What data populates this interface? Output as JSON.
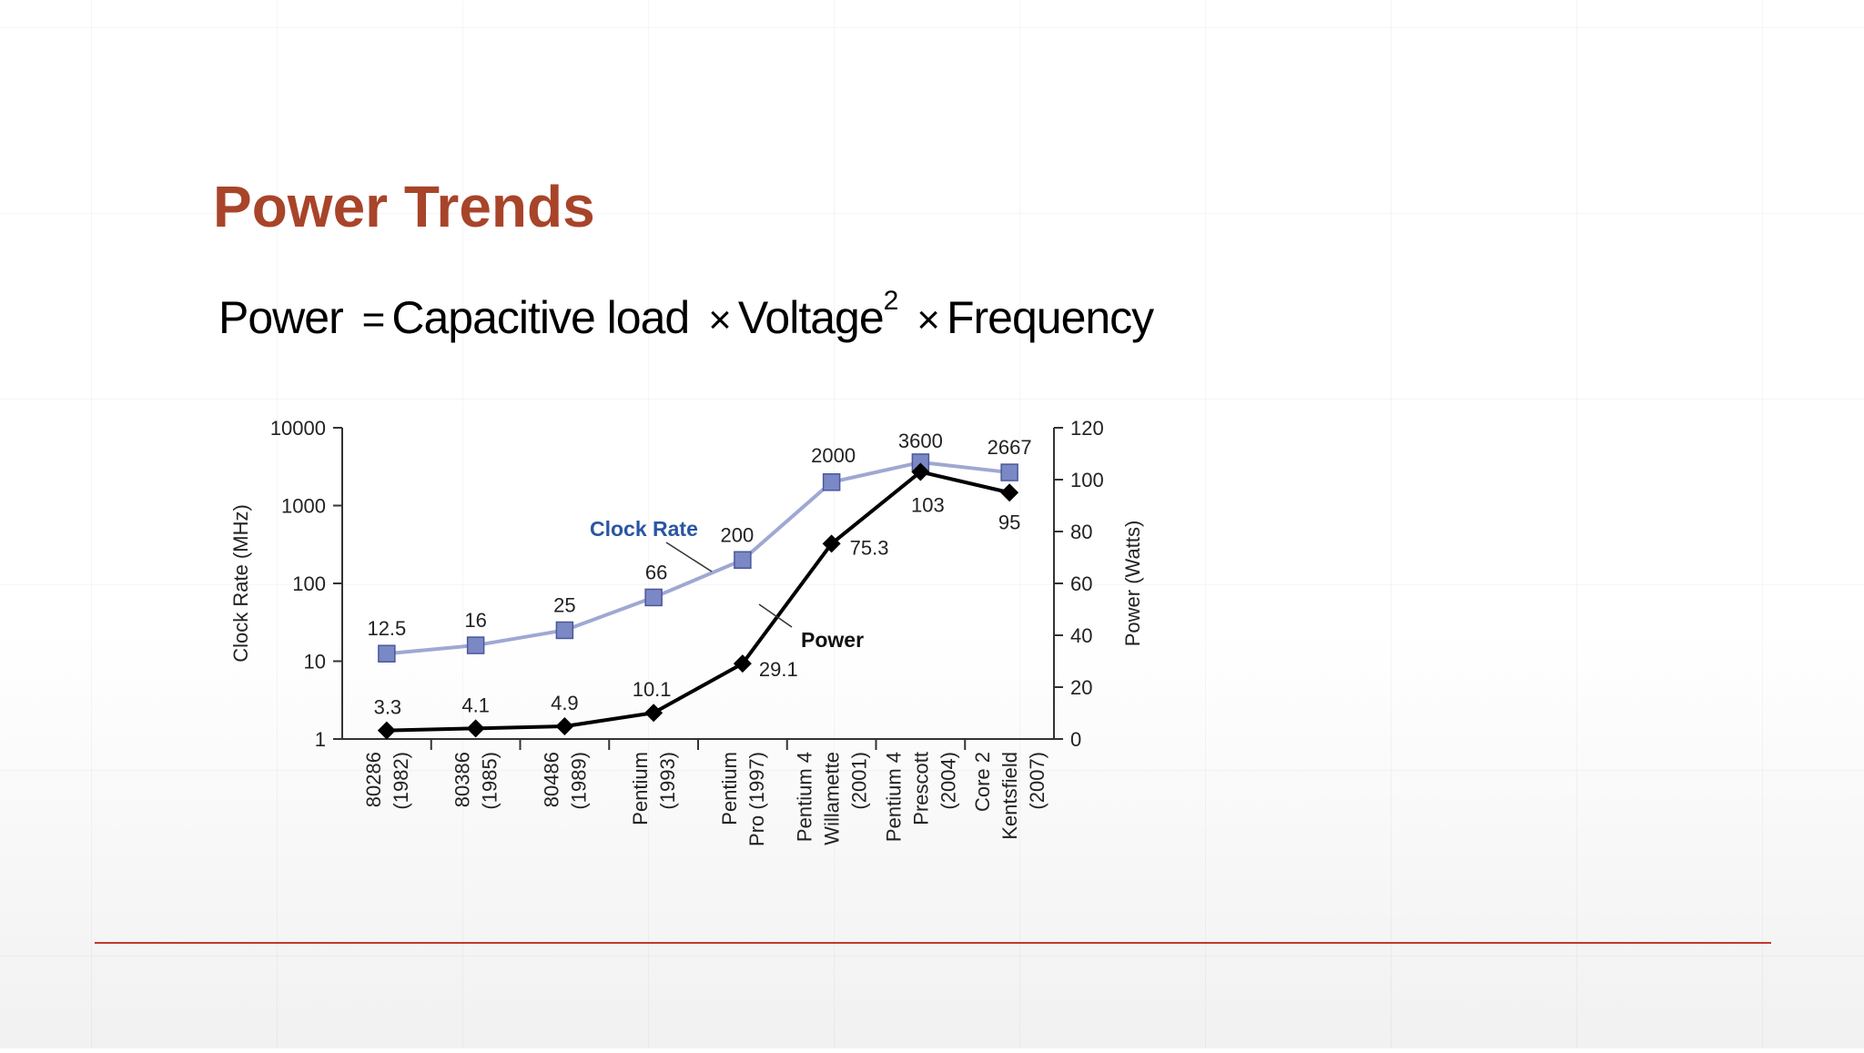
{
  "slide": {
    "title": "Power Trends",
    "formula": {
      "lhs": "Power",
      "eq": "=",
      "term1": "Capacitive load",
      "times": "×",
      "term2": "Voltage",
      "exp": "2",
      "term3": "Frequency"
    }
  },
  "colors": {
    "title": "#a8442a",
    "clock_line": "#9fa8d2",
    "clock_marker": "#7b88c6",
    "clock_label": "#2a55a3",
    "power_line": "#000000",
    "footer_rule": "#c0392b"
  },
  "chart_data": {
    "type": "line",
    "categories": [
      [
        "80286",
        "(1982)"
      ],
      [
        "80386",
        "(1985)"
      ],
      [
        "80486",
        "(1989)"
      ],
      [
        "Pentium",
        "(1993)"
      ],
      [
        "Pentium",
        "Pro (1997)"
      ],
      [
        "Pentium 4",
        "Willamette",
        "(2001)"
      ],
      [
        "Pentium 4",
        "Prescott",
        "(2004)"
      ],
      [
        "Core 2",
        "Kentsfield",
        "(2007)"
      ]
    ],
    "series": [
      {
        "name": "Clock Rate",
        "axis": "left",
        "scale": "log",
        "marker": "square",
        "values": [
          12.5,
          16,
          25,
          66,
          200,
          2000,
          3600,
          2667
        ],
        "labels": [
          "12.5",
          "16",
          "25",
          "66",
          "200",
          "2000",
          "3600",
          "2667"
        ]
      },
      {
        "name": "Power",
        "axis": "right",
        "scale": "linear",
        "marker": "diamond",
        "values": [
          3.3,
          4.1,
          4.9,
          10.1,
          29.1,
          75.3,
          103,
          95
        ],
        "labels": [
          "3.3",
          "4.1",
          "4.9",
          "10.1",
          "29.1",
          "75.3",
          "103",
          "95"
        ]
      }
    ],
    "y_left": {
      "label": "Clock Rate (MHz)",
      "scale": "log",
      "ticks": [
        1,
        10,
        100,
        1000,
        10000
      ],
      "tick_labels": [
        "1",
        "10",
        "100",
        "1000",
        "10000"
      ]
    },
    "y_right": {
      "label": "Power (Watts)",
      "scale": "linear",
      "ticks": [
        0,
        20,
        40,
        60,
        80,
        100,
        120
      ],
      "tick_labels": [
        "0",
        "20",
        "40",
        "60",
        "80",
        "100",
        "120"
      ]
    },
    "grid": false
  }
}
